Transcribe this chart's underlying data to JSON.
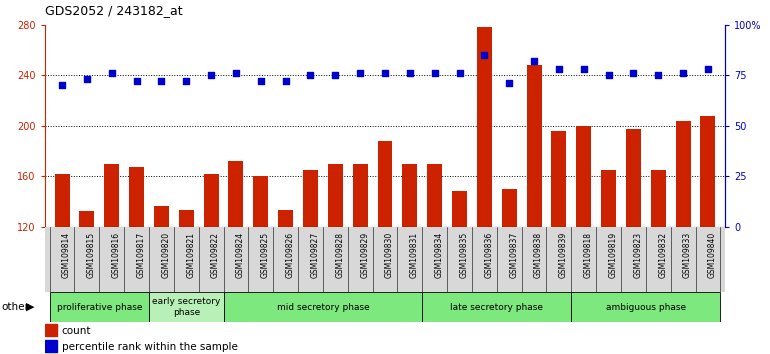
{
  "title": "GDS2052 / 243182_at",
  "samples": [
    "GSM109814",
    "GSM109815",
    "GSM109816",
    "GSM109817",
    "GSM109820",
    "GSM109821",
    "GSM109822",
    "GSM109824",
    "GSM109825",
    "GSM109826",
    "GSM109827",
    "GSM109828",
    "GSM109829",
    "GSM109830",
    "GSM109831",
    "GSM109834",
    "GSM109835",
    "GSM109836",
    "GSM109837",
    "GSM109838",
    "GSM109839",
    "GSM109818",
    "GSM109819",
    "GSM109823",
    "GSM109832",
    "GSM109833",
    "GSM109840"
  ],
  "counts": [
    162,
    132,
    170,
    167,
    136,
    133,
    162,
    172,
    160,
    133,
    165,
    170,
    170,
    188,
    170,
    170,
    148,
    278,
    150,
    248,
    196,
    200,
    165,
    197,
    165,
    204,
    208
  ],
  "percentile": [
    70,
    73,
    76,
    72,
    72,
    72,
    75,
    76,
    72,
    72,
    75,
    75,
    76,
    76,
    76,
    76,
    76,
    85,
    71,
    82,
    78,
    78,
    75,
    76,
    75,
    76,
    78
  ],
  "phases": [
    {
      "label": "proliferative phase",
      "start": 0,
      "end": 4,
      "color": "#7de87d"
    },
    {
      "label": "early secretory\nphase",
      "start": 4,
      "end": 7,
      "color": "#b8f0b8"
    },
    {
      "label": "mid secretory phase",
      "start": 7,
      "end": 15,
      "color": "#7de87d"
    },
    {
      "label": "late secretory phase",
      "start": 15,
      "end": 21,
      "color": "#7de87d"
    },
    {
      "label": "ambiguous phase",
      "start": 21,
      "end": 27,
      "color": "#7de87d"
    }
  ],
  "ymin": 120,
  "ymax": 280,
  "yticks_left": [
    120,
    160,
    200,
    240,
    280
  ],
  "yticks_right": [
    0,
    25,
    50,
    75,
    100
  ],
  "bar_color": "#cc2200",
  "dot_color": "#0000cc",
  "bg_color": "#ffffff",
  "plot_bg": "#ffffff"
}
